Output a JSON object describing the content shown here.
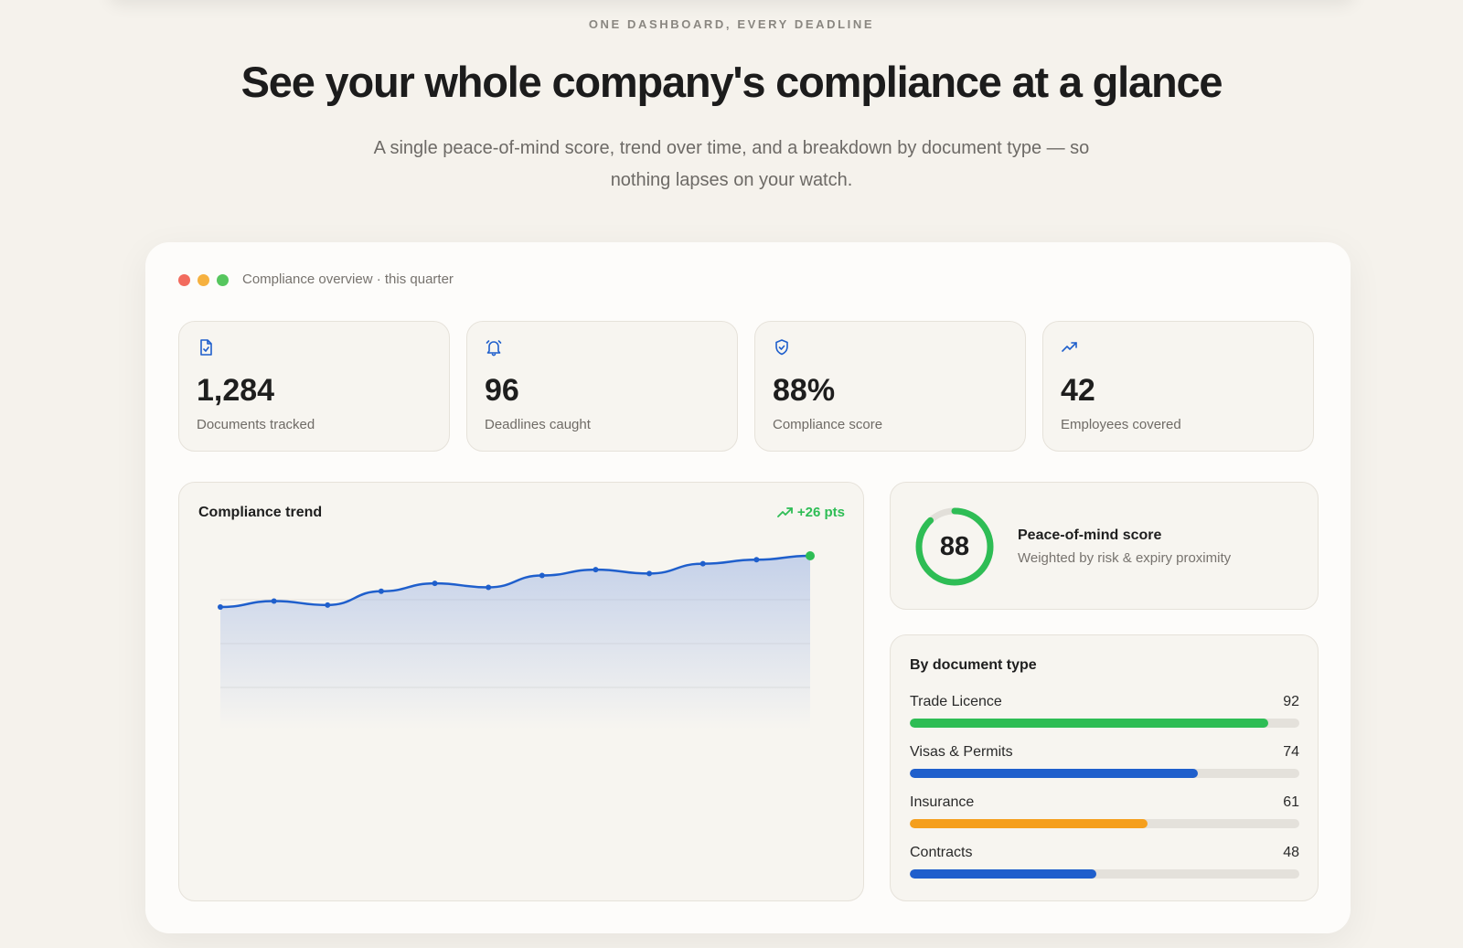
{
  "hero": {
    "eyebrow": "ONE DASHBOARD, EVERY DEADLINE",
    "headline": "See your whole company's compliance at a glance",
    "subhead": "A single peace-of-mind score, trend over time, and a breakdown by document type — so nothing lapses on your watch."
  },
  "window": {
    "title": "Compliance overview · this quarter",
    "dots": [
      "red",
      "yellow",
      "green"
    ]
  },
  "stats": [
    {
      "icon": "document-check-icon",
      "value": "1,284",
      "label": "Documents tracked"
    },
    {
      "icon": "bell-icon",
      "value": "96",
      "label": "Deadlines caught"
    },
    {
      "icon": "shield-check-icon",
      "value": "88%",
      "label": "Compliance score"
    },
    {
      "icon": "trending-up-icon",
      "value": "42",
      "label": "Employees covered"
    }
  ],
  "trend": {
    "title": "Compliance trend",
    "delta": "+26 pts"
  },
  "chart_data": {
    "type": "area",
    "title": "Compliance trend",
    "x": [
      1,
      2,
      3,
      4,
      5,
      6,
      7,
      8,
      9,
      10,
      11,
      12
    ],
    "series": [
      {
        "values": [
          62,
          65,
          63,
          70,
          74,
          72,
          78,
          81,
          79,
          84,
          86,
          88
        ]
      }
    ],
    "ylim": [
      0,
      100
    ],
    "grid": true,
    "colors": {
      "line": "#1f5fcc",
      "area": "#9cb4e4",
      "last_point": "#2ebd55"
    }
  },
  "score": {
    "value": "88",
    "percent": 88,
    "title": "Peace-of-mind score",
    "subtitle": "Weighted by risk & expiry proximity",
    "color": "#2ebd55"
  },
  "types": {
    "title": "By document type",
    "items": [
      {
        "name": "Trade Licence",
        "value": "92",
        "percent": 92,
        "color": "#2ebd55"
      },
      {
        "name": "Visas & Permits",
        "value": "74",
        "percent": 74,
        "color": "#1f5fcc"
      },
      {
        "name": "Insurance",
        "value": "61",
        "percent": 61,
        "color": "#f59f1d"
      },
      {
        "name": "Contracts",
        "value": "48",
        "percent": 48,
        "color": "#1f5fcc"
      }
    ]
  }
}
